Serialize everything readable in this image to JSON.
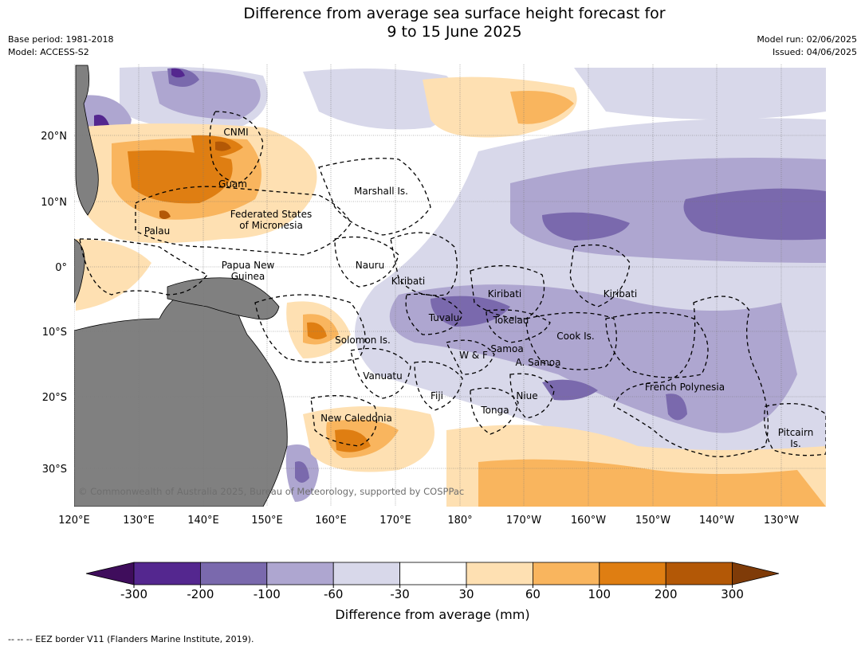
{
  "title_line1": "Difference from average sea surface height forecast for",
  "title_line2": "9 to 15 June 2025",
  "base_period": "Base period: 1981-2018",
  "model": "Model: ACCESS-S2",
  "model_run": "Model run: 02/06/2025",
  "issued": "Issued: 04/06/2025",
  "copyright": "© Commonwealth of Australia 2025, Bureau of Meteorology, supported by COSPPac",
  "lon_labels": [
    "120°E",
    "130°E",
    "140°E",
    "150°E",
    "160°E",
    "170°E",
    "180°",
    "170°W",
    "160°W",
    "150°W",
    "140°W",
    "130°W"
  ],
  "lat_labels": [
    "20°N",
    "10°N",
    "0°",
    "10°S",
    "20°S",
    "30°S"
  ],
  "regions": [
    {
      "name": "CNMI"
    },
    {
      "name": "Guam"
    },
    {
      "name": "Marshall Is."
    },
    {
      "name": "Federated States"
    },
    {
      "name": "of Micronesia"
    },
    {
      "name": "Palau"
    },
    {
      "name": "Papua New"
    },
    {
      "name": "Guinea"
    },
    {
      "name": "Nauru"
    },
    {
      "name": "Kiribati"
    },
    {
      "name": "Kiribati"
    },
    {
      "name": "Kiribati"
    },
    {
      "name": "Tuvalu"
    },
    {
      "name": "Tokelau"
    },
    {
      "name": "Cook Is."
    },
    {
      "name": "Solomon Is."
    },
    {
      "name": "Samoa"
    },
    {
      "name": "W & F"
    },
    {
      "name": "A. Samoa"
    },
    {
      "name": "Vanuatu"
    },
    {
      "name": "Fiji"
    },
    {
      "name": "Niue"
    },
    {
      "name": "French Polynesia"
    },
    {
      "name": "Tonga"
    },
    {
      "name": "New Caledonia"
    },
    {
      "name": "Pitcairn"
    },
    {
      "name": "Is."
    }
  ],
  "colorbar": {
    "ticks": [
      "-300",
      "-200",
      "-100",
      "-60",
      "-30",
      "30",
      "60",
      "100",
      "200",
      "300"
    ],
    "colors": [
      "#3f0d5c",
      "#54278f",
      "#7a69ad",
      "#aea6d0",
      "#d8d8ea",
      "#ffffff",
      "#fee0b2",
      "#f9b55e",
      "#df7e12",
      "#b35806",
      "#7f3b08"
    ],
    "label": "Difference from average (mm)"
  },
  "land_color": "#808080",
  "footnote": "--  --  -- EEZ border V11 (Flanders Marine Institute, 2019)."
}
